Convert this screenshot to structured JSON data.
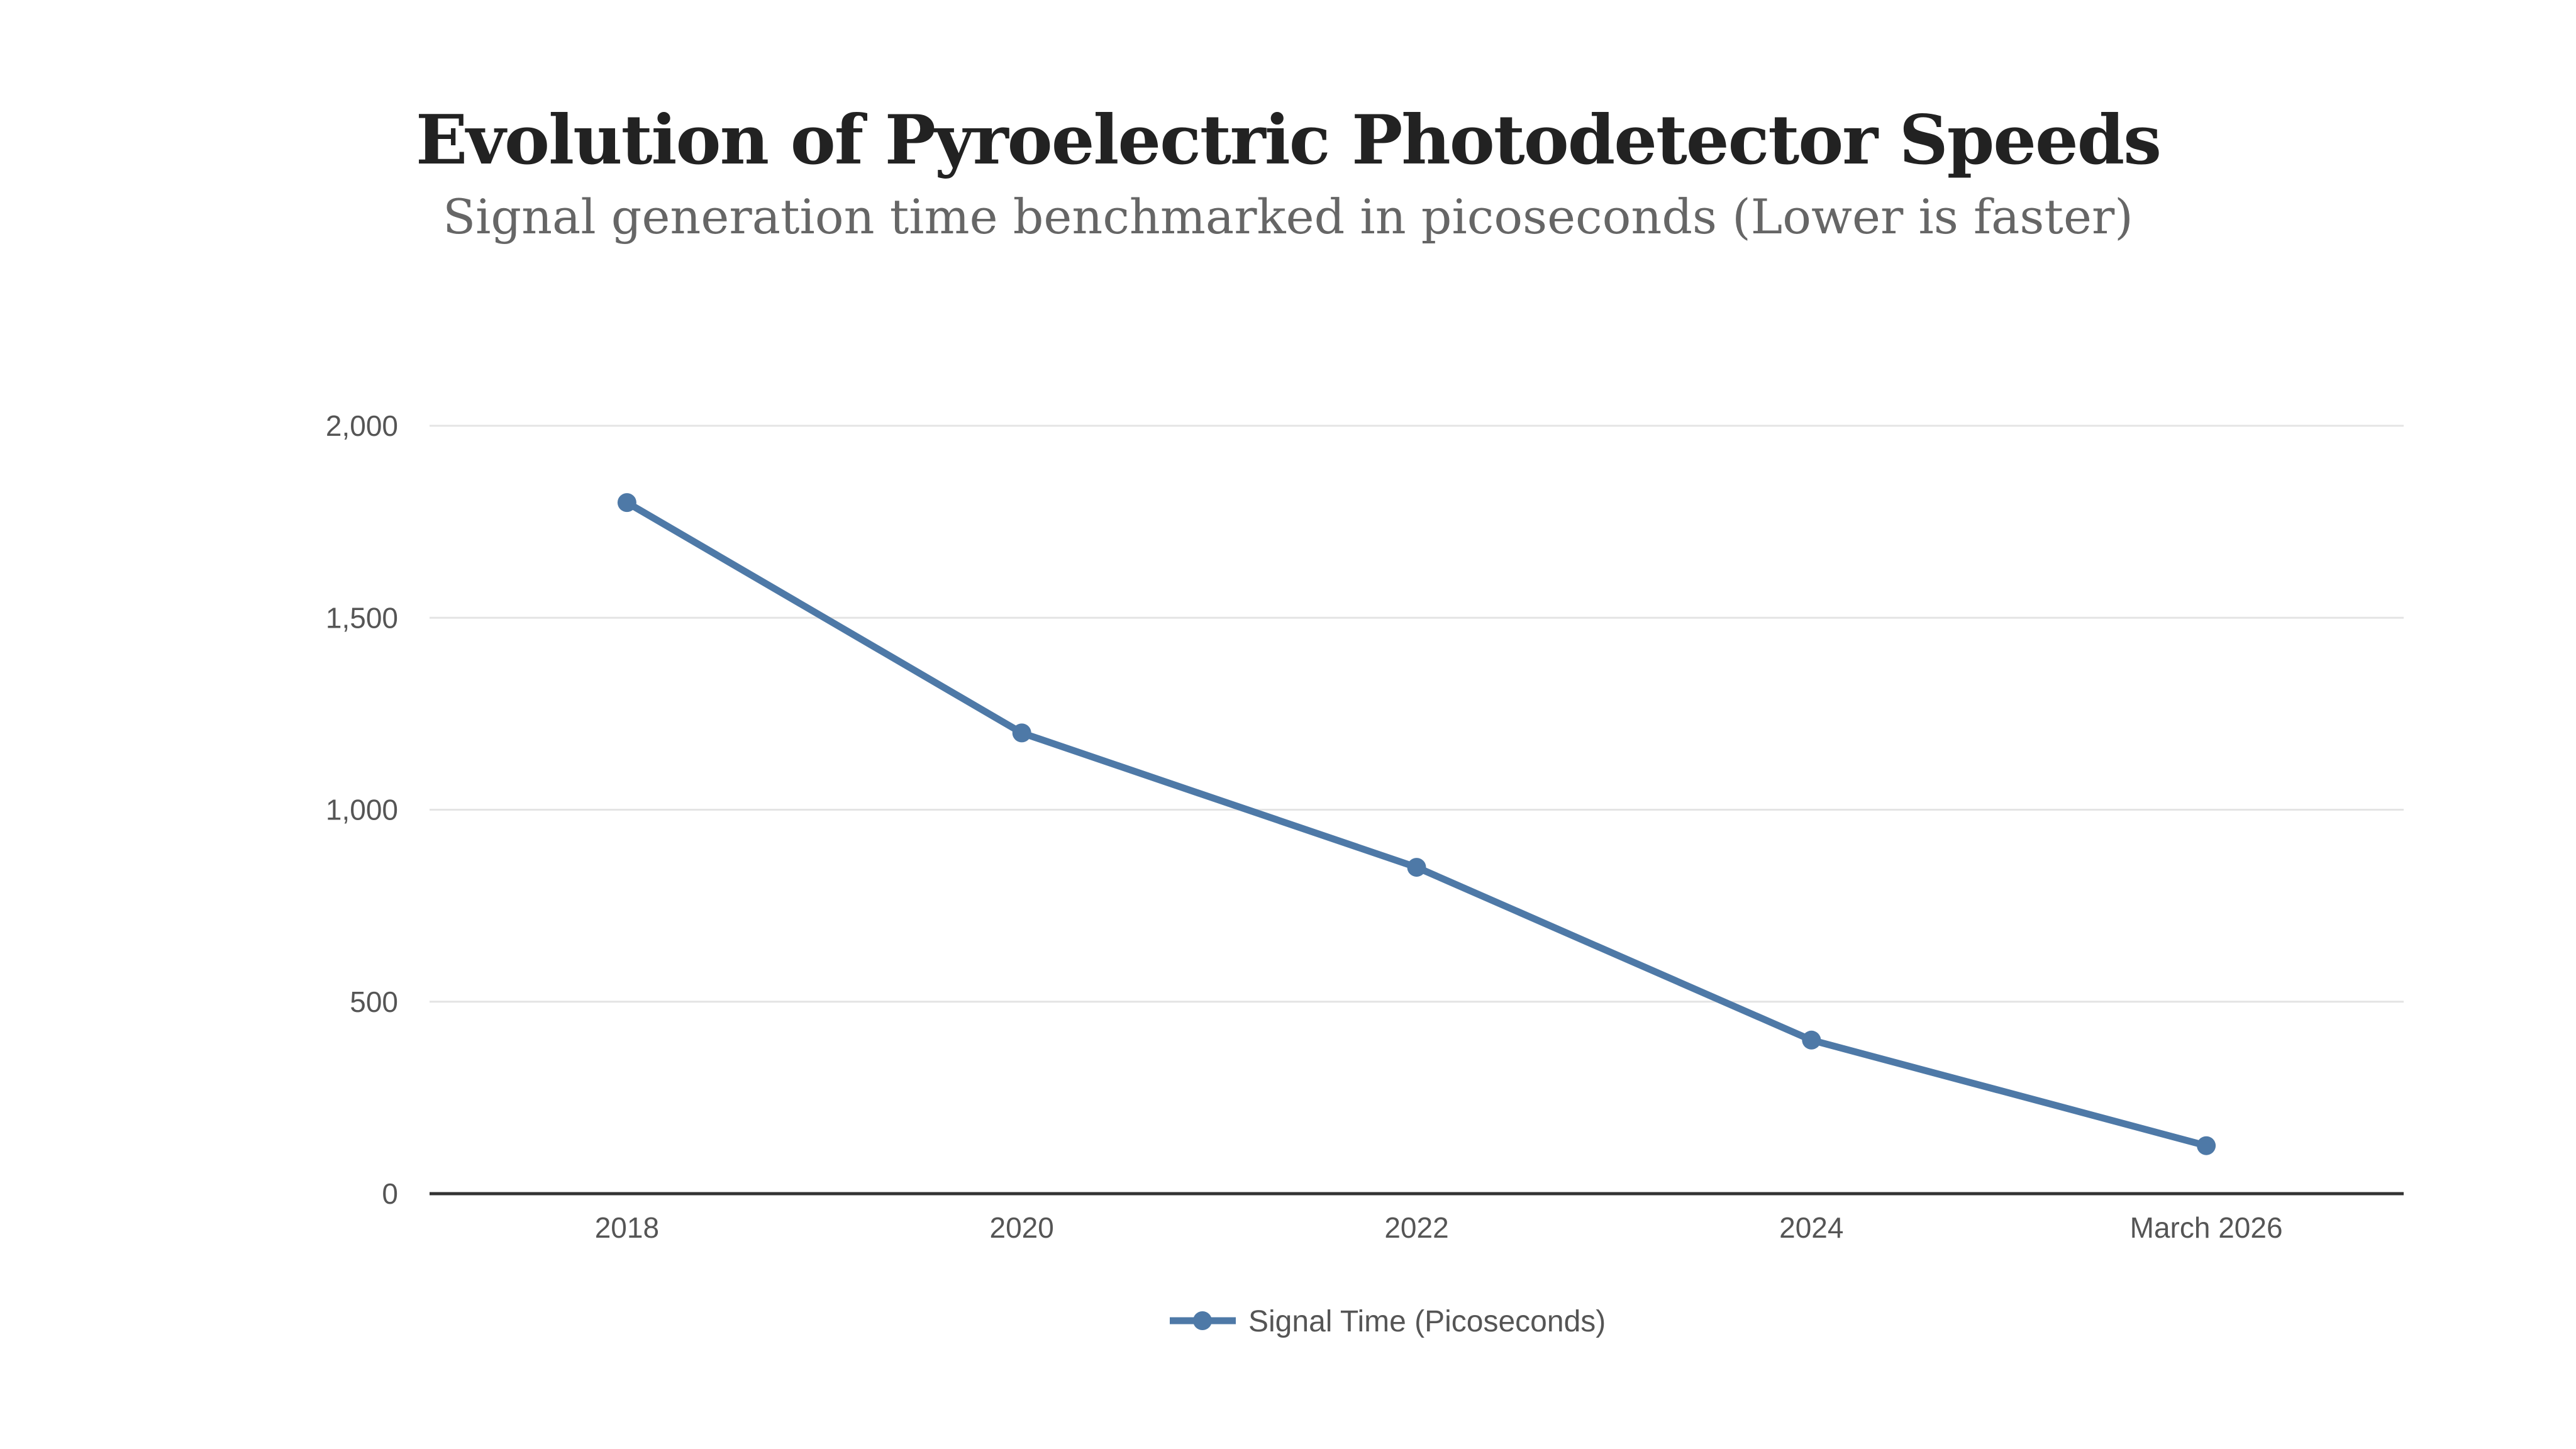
{
  "chart_data": {
    "type": "line",
    "title": "Evolution of Pyroelectric Photodetector Speeds",
    "subtitle": "Signal generation time benchmarked in picoseconds (Lower is faster)",
    "categories": [
      "2018",
      "2020",
      "2022",
      "2024",
      "March 2026"
    ],
    "series": [
      {
        "name": "Signal Time (Picoseconds)",
        "values": [
          1800,
          1200,
          850,
          400,
          125
        ],
        "color": "#4e79a7"
      }
    ],
    "xlabel": "",
    "ylabel": "",
    "ylim": [
      0,
      2000
    ],
    "yticks": [
      0,
      500,
      1000,
      1500,
      2000
    ],
    "ytick_labels": [
      "0",
      "500",
      "1,000",
      "1,500",
      "2,000"
    ],
    "grid": true,
    "legend_position": "bottom-center"
  }
}
